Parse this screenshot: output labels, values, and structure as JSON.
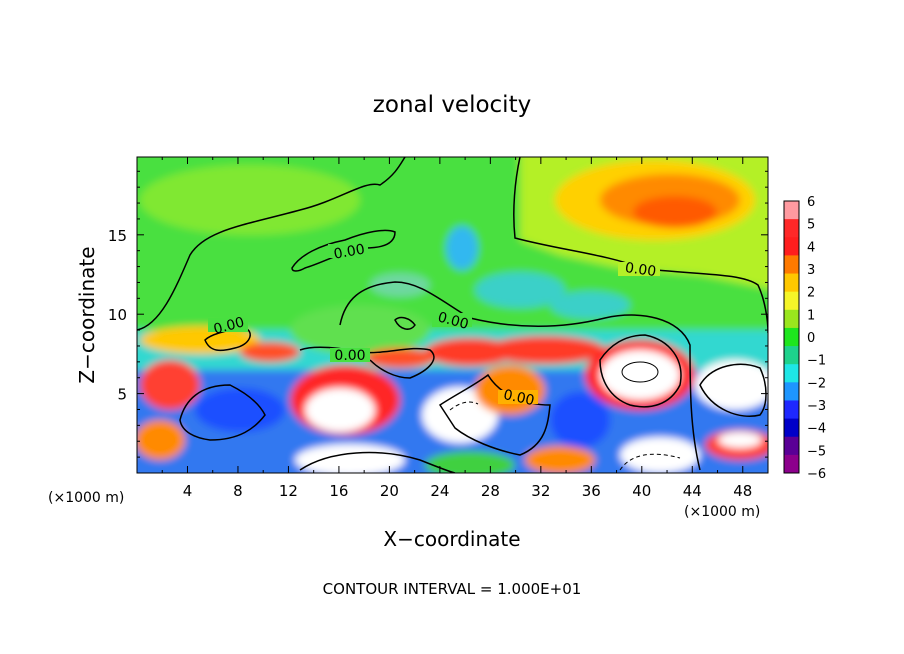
{
  "chart_data": {
    "type": "heatmap",
    "title": "zonal velocity",
    "xlabel": "X−coordinate",
    "ylabel": "Z−coordinate",
    "x_unit_left": "(×1000 m)",
    "x_unit_right": "(×1000 m)",
    "footer": "CONTOUR INTERVAL = 1.000E+01",
    "xlim": [
      0,
      50
    ],
    "ylim": [
      0,
      19.9
    ],
    "x_ticks": [
      4,
      8,
      12,
      16,
      20,
      24,
      28,
      32,
      36,
      40,
      44,
      48
    ],
    "x_tick_labels": [
      "4",
      "8",
      "12",
      "16",
      "20",
      "24",
      "28",
      "32",
      "36",
      "40",
      "44",
      "48"
    ],
    "y_ticks": [
      5,
      10,
      15
    ],
    "y_tick_labels": [
      "5",
      "10",
      "15"
    ],
    "contour_labels": [
      "0.00",
      "0.00",
      "0.00",
      "0.00",
      "0.00",
      "0.00"
    ],
    "colorbar": {
      "levels": [
        6,
        5,
        4,
        3,
        2,
        1,
        0,
        -1,
        -2,
        -3,
        -4,
        -5,
        -6
      ],
      "labels": [
        "6",
        "5",
        "4",
        "3",
        "2",
        "1",
        "0",
        "−1",
        "−2",
        "−3",
        "−4",
        "−5",
        "−6"
      ],
      "colors": [
        "#ff9aa0",
        "#ff2828",
        "#ff1e1e",
        "#ff7a00",
        "#ffc800",
        "#f5f528",
        "#9ae61e",
        "#1ee61e",
        "#1ed28c",
        "#1ee6e6",
        "#1e96ff",
        "#1e28ff",
        "#0000c8",
        "#5a0096",
        "#8c008c"
      ]
    }
  }
}
